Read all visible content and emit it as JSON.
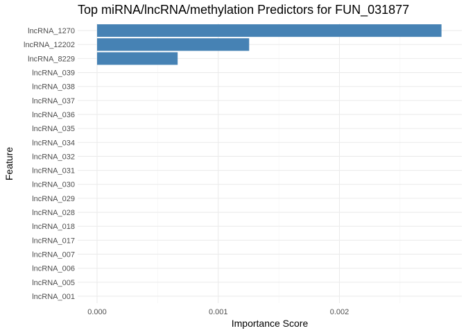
{
  "chart_data": {
    "type": "bar",
    "orientation": "horizontal",
    "title": "Top miRNA/lncRNA/methylation Predictors for FUN_031877",
    "xlabel": "Importance Score",
    "ylabel": "Feature",
    "categories": [
      "lncRNA_1270",
      "lncRNA_12202",
      "lncRNA_8229",
      "lncRNA_039",
      "lncRNA_038",
      "lncRNA_037",
      "lncRNA_036",
      "lncRNA_035",
      "lncRNA_034",
      "lncRNA_032",
      "lncRNA_031",
      "lncRNA_030",
      "lncRNA_029",
      "lncRNA_028",
      "lncRNA_018",
      "lncRNA_017",
      "lncRNA_007",
      "lncRNA_006",
      "lncRNA_005",
      "lncRNA_001"
    ],
    "values": [
      0.002842,
      0.001255,
      0.000665,
      0,
      0,
      0,
      0,
      0,
      0,
      0,
      0,
      0,
      0,
      0,
      0,
      0,
      0,
      0,
      0,
      0
    ],
    "xlim": [
      -0.00016,
      0.00301
    ],
    "xticks": [
      0,
      0.001,
      0.002
    ],
    "xtick_labels": [
      "0.000",
      "0.001",
      "0.002"
    ],
    "bar_color": "#4682b4",
    "grid": true,
    "legend": "none"
  }
}
